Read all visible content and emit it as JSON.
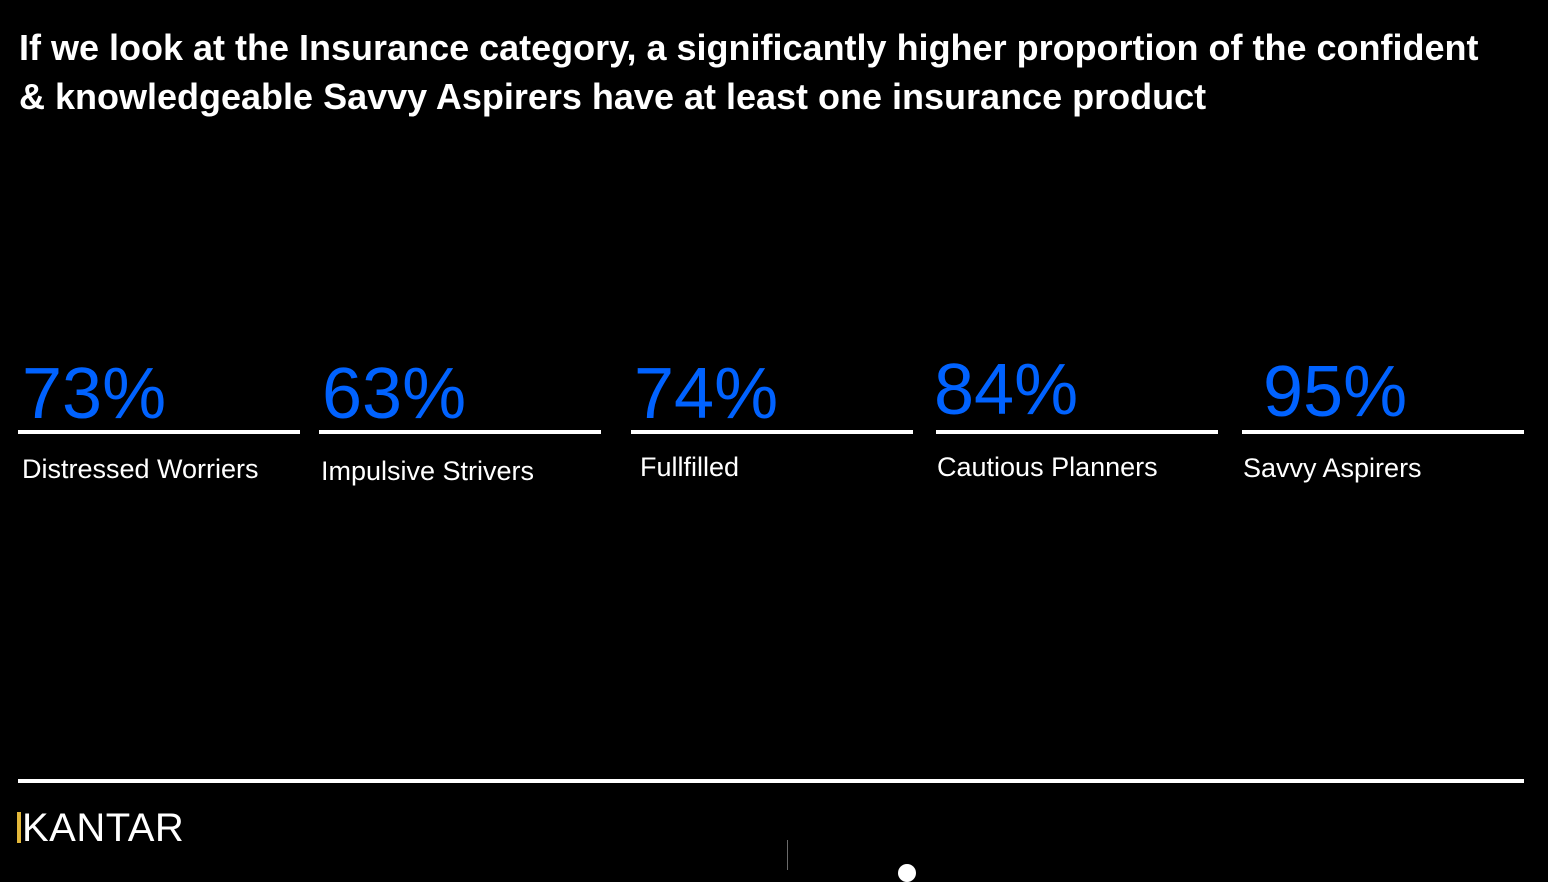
{
  "slide": {
    "headline": "If we look at the Insurance category, a significantly higher proportion of the confident & knowledgeable Savvy Aspirers have at least one insurance product"
  },
  "stats": [
    {
      "value": "73%",
      "label": "Distressed Worriers"
    },
    {
      "value": "63%",
      "label": "Impulsive Strivers"
    },
    {
      "value": "74%",
      "label": "Fullfilled"
    },
    {
      "value": "84%",
      "label": "Cautious Planners"
    },
    {
      "value": "95%",
      "label": "Savvy Aspirers"
    }
  ],
  "footer": {
    "logo_text": "KANTAR"
  },
  "colors": {
    "background": "#000000",
    "accent_blue": "#0062ff",
    "text": "#ffffff",
    "logo_accent": "#e2b73a"
  }
}
